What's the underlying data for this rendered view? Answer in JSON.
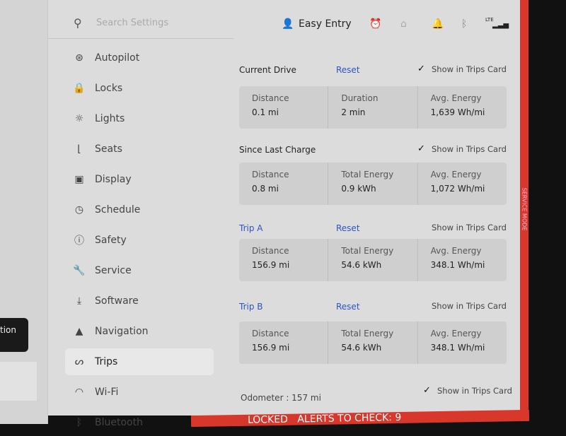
{
  "left_panel": {
    "button_partial": "tion"
  },
  "search": {
    "placeholder": "Search Settings",
    "icon": "search-icon"
  },
  "sidebar": {
    "items": [
      {
        "label": "Autopilot",
        "icon": "steering-wheel-icon",
        "glyph": "⊛"
      },
      {
        "label": "Locks",
        "icon": "lock-icon",
        "glyph": "🔒"
      },
      {
        "label": "Lights",
        "icon": "light-icon",
        "glyph": "☼"
      },
      {
        "label": "Seats",
        "icon": "seat-icon",
        "glyph": "⌊"
      },
      {
        "label": "Display",
        "icon": "display-icon",
        "glyph": "▣"
      },
      {
        "label": "Schedule",
        "icon": "schedule-icon",
        "glyph": "◷"
      },
      {
        "label": "Safety",
        "icon": "safety-icon",
        "glyph": "ⓘ"
      },
      {
        "label": "Service",
        "icon": "wrench-icon",
        "glyph": "🔧"
      },
      {
        "label": "Software",
        "icon": "download-icon",
        "glyph": "⤓"
      },
      {
        "label": "Navigation",
        "icon": "navigation-icon",
        "glyph": "▲"
      },
      {
        "label": "Trips",
        "icon": "trips-icon",
        "glyph": "ᔕ",
        "active": true
      },
      {
        "label": "Wi-Fi",
        "icon": "wifi-icon",
        "glyph": "◠"
      },
      {
        "label": "Bluetooth",
        "icon": "bluetooth-icon",
        "glyph": "ᛒ"
      }
    ]
  },
  "status": {
    "profile": "Easy Entry",
    "lte": "LTE"
  },
  "sections": [
    {
      "title": "Current Drive",
      "reset": "Reset",
      "show": "Show in Trips Card",
      "checked": true,
      "cells": [
        {
          "label": "Distance",
          "value": "0.1 mi"
        },
        {
          "label": "Duration",
          "value": "2 min"
        },
        {
          "label": "Avg. Energy",
          "value": "1,639 Wh/mi"
        }
      ]
    },
    {
      "title": "Since Last Charge",
      "show": "Show in Trips Card",
      "checked": true,
      "cells": [
        {
          "label": "Distance",
          "value": "0.8 mi"
        },
        {
          "label": "Total Energy",
          "value": "0.9 kWh"
        },
        {
          "label": "Avg. Energy",
          "value": "1,072 Wh/mi"
        }
      ]
    },
    {
      "title": "Trip A",
      "reset": "Reset",
      "show": "Show in Trips Card",
      "checked": false,
      "cells": [
        {
          "label": "Distance",
          "value": "156.9 mi"
        },
        {
          "label": "Total Energy",
          "value": "54.6 kWh"
        },
        {
          "label": "Avg. Energy",
          "value": "348.1 Wh/mi"
        }
      ]
    },
    {
      "title": "Trip B",
      "reset": "Reset",
      "show": "Show in Trips Card",
      "checked": false,
      "cells": [
        {
          "label": "Distance",
          "value": "156.9 mi"
        },
        {
          "label": "Total Energy",
          "value": "54.6 kWh"
        },
        {
          "label": "Avg. Energy",
          "value": "348.1 Wh/mi"
        }
      ]
    }
  ],
  "odometer": {
    "label": "Odometer",
    "value": "157 mi",
    "show": "Show in Trips Card",
    "checked": true
  },
  "service_mode": "SERVICE MODE",
  "alert_bar": {
    "locked": "LOCKED",
    "alerts": "ALERTS TO CHECK: 9"
  },
  "colors": {
    "accent": "#2a55c8",
    "service_red": "#d8372c"
  }
}
